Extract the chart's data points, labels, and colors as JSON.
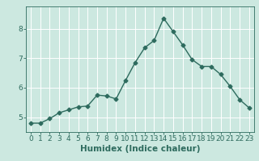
{
  "x": [
    0,
    1,
    2,
    3,
    4,
    5,
    6,
    7,
    8,
    9,
    10,
    11,
    12,
    13,
    14,
    15,
    16,
    17,
    18,
    19,
    20,
    21,
    22,
    23
  ],
  "y": [
    4.8,
    4.8,
    4.95,
    5.15,
    5.25,
    5.35,
    5.38,
    5.75,
    5.72,
    5.62,
    6.25,
    6.85,
    7.35,
    7.6,
    8.35,
    7.9,
    7.45,
    6.95,
    6.72,
    6.72,
    6.45,
    6.05,
    5.6,
    5.32
  ],
  "line_color": "#2e6b5e",
  "marker": "D",
  "markersize": 2.5,
  "linewidth": 1.0,
  "xlabel": "Humidex (Indice chaleur)",
  "xlim": [
    -0.5,
    23.5
  ],
  "ylim": [
    4.5,
    8.75
  ],
  "yticks": [
    5,
    6,
    7,
    8
  ],
  "xticks": [
    0,
    1,
    2,
    3,
    4,
    5,
    6,
    7,
    8,
    9,
    10,
    11,
    12,
    13,
    14,
    15,
    16,
    17,
    18,
    19,
    20,
    21,
    22,
    23
  ],
  "background_color": "#cce8e0",
  "grid_color": "#ffffff",
  "tick_color": "#2e6b5e",
  "label_color": "#2e6b5e",
  "xlabel_fontsize": 7.5,
  "tick_fontsize": 6.5
}
